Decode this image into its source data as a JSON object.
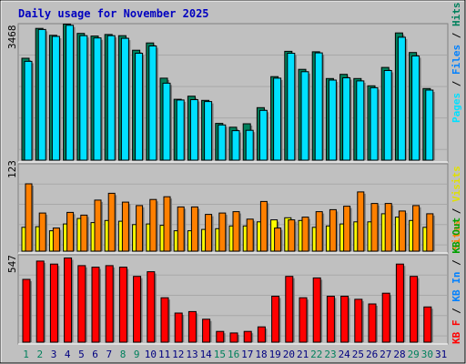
{
  "title": "Daily usage for November 2025",
  "colors": {
    "background": "#c0c0c0",
    "title": "#0000c0",
    "hits": "#00805c",
    "files": "#00e0ff",
    "pages": "#00e0ff",
    "visits": "#ffff00",
    "sites": "#ff8000",
    "kb_in": "#ff0000",
    "weekend_label": "#00805c",
    "weekday_label": "#000080"
  },
  "chart_data": [
    {
      "type": "bar",
      "max_label": "3468",
      "ylim": [
        0,
        3468
      ],
      "categories": [
        "1",
        "2",
        "3",
        "4",
        "5",
        "6",
        "7",
        "8",
        "9",
        "10",
        "11",
        "12",
        "13",
        "14",
        "15",
        "16",
        "17",
        "18",
        "19",
        "20",
        "21",
        "22",
        "23",
        "24",
        "25",
        "26",
        "27",
        "28",
        "29",
        "30",
        "31"
      ],
      "weekend_days": [
        1,
        2,
        8,
        9,
        15,
        16,
        22,
        23,
        29,
        30
      ],
      "legend": {
        "pages": "Pages",
        "sep1": " / ",
        "files": "Files",
        "sep2": " / ",
        "hits": "Hits"
      },
      "series": [
        {
          "name": "Hits",
          "values": [
            2660,
            3440,
            3260,
            3550,
            3310,
            3240,
            3280,
            3250,
            2870,
            3060,
            2140,
            1590,
            1670,
            1560,
            960,
            860,
            950,
            1370,
            2180,
            2840,
            2370,
            2830,
            2130,
            2240,
            2130,
            1940,
            2420,
            3320,
            2810,
            1870,
            0
          ]
        },
        {
          "name": "Files",
          "values": [
            2580,
            3410,
            3230,
            3520,
            3250,
            3190,
            3250,
            3180,
            2790,
            2980,
            2010,
            1570,
            1580,
            1530,
            920,
            770,
            780,
            1300,
            2140,
            2790,
            2310,
            2800,
            2090,
            2150,
            2070,
            1890,
            2340,
            3210,
            2720,
            1830,
            0
          ]
        },
        {
          "name": "Pages",
          "values": [
            2580,
            3410,
            3230,
            3520,
            3250,
            3190,
            3250,
            3180,
            2790,
            2980,
            2010,
            1570,
            1580,
            1530,
            920,
            770,
            780,
            1300,
            2140,
            2790,
            2310,
            2800,
            2090,
            2150,
            2070,
            1890,
            2340,
            3210,
            2720,
            1830,
            0
          ]
        }
      ]
    },
    {
      "type": "bar",
      "max_label": "123",
      "ylim": [
        0,
        123
      ],
      "categories": [
        "1",
        "2",
        "3",
        "4",
        "5",
        "6",
        "7",
        "8",
        "9",
        "10",
        "11",
        "12",
        "13",
        "14",
        "15",
        "16",
        "17",
        "18",
        "19",
        "20",
        "21",
        "22",
        "23",
        "24",
        "25",
        "26",
        "27",
        "28",
        "29",
        "30",
        "31"
      ],
      "legend": {
        "visits": "Visits",
        "sep1": " / ",
        "sites": "Sites"
      },
      "series": [
        {
          "name": "Visits",
          "values": [
            35,
            36,
            30,
            40,
            48,
            42,
            45,
            44,
            39,
            40,
            38,
            30,
            30,
            32,
            33,
            37,
            37,
            43,
            46,
            49,
            45,
            35,
            37,
            40,
            43,
            43,
            55,
            50,
            45,
            35,
            0
          ]
        },
        {
          "name": "Sites",
          "values": [
            99,
            56,
            34,
            57,
            53,
            75,
            85,
            72,
            67,
            76,
            80,
            65,
            65,
            54,
            56,
            58,
            47,
            73,
            34,
            46,
            50,
            58,
            61,
            66,
            87,
            70,
            70,
            59,
            67,
            55,
            0
          ]
        }
      ]
    },
    {
      "type": "bar",
      "max_label": "547",
      "ylim": [
        0,
        547
      ],
      "categories": [
        "1",
        "2",
        "3",
        "4",
        "5",
        "6",
        "7",
        "8",
        "9",
        "10",
        "11",
        "12",
        "13",
        "14",
        "15",
        "16",
        "17",
        "18",
        "19",
        "20",
        "21",
        "22",
        "23",
        "24",
        "25",
        "26",
        "27",
        "28",
        "29",
        "30",
        "31"
      ],
      "legend": {
        "kb_out": "KB Out",
        "sep1": " / ",
        "kb_in": "KB In",
        "sep2": " / ",
        "kb_f": "KB F"
      },
      "series": [
        {
          "name": "KB In",
          "values": [
            410,
            530,
            510,
            550,
            500,
            490,
            500,
            490,
            430,
            460,
            290,
            190,
            200,
            150,
            70,
            60,
            70,
            100,
            300,
            430,
            290,
            420,
            300,
            300,
            280,
            250,
            320,
            510,
            430,
            230,
            0
          ]
        }
      ]
    }
  ]
}
